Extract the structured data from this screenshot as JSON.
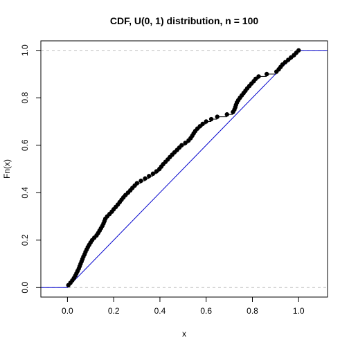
{
  "chart_data": {
    "type": "scatter",
    "title": "CDF, U(0, 1) distribution, n = 100",
    "xlabel": "x",
    "ylabel": "Fn(x)",
    "xlim": [
      -0.115,
      1.125
    ],
    "ylim": [
      -0.04,
      1.04
    ],
    "x_ticks": [
      0.0,
      0.2,
      0.4,
      0.6,
      0.8,
      1.0
    ],
    "x_tick_labels": [
      "0.0",
      "0.2",
      "0.4",
      "0.6",
      "0.8",
      "1.0"
    ],
    "y_ticks": [
      0.0,
      0.2,
      0.4,
      0.6,
      0.8,
      1.0
    ],
    "y_tick_labels": [
      "0.0",
      "0.2",
      "0.4",
      "0.6",
      "0.8",
      "1.0"
    ],
    "reference_hlines": [
      0,
      1
    ],
    "theoretical_cdf": {
      "x": [
        -0.115,
        0,
        1,
        1.125
      ],
      "y": [
        0,
        0,
        1,
        1
      ]
    },
    "ecdf_x": [
      0.004,
      0.013,
      0.021,
      0.028,
      0.034,
      0.039,
      0.044,
      0.049,
      0.053,
      0.057,
      0.061,
      0.065,
      0.069,
      0.074,
      0.078,
      0.083,
      0.088,
      0.094,
      0.1,
      0.107,
      0.116,
      0.126,
      0.133,
      0.139,
      0.145,
      0.151,
      0.156,
      0.16,
      0.164,
      0.172,
      0.182,
      0.192,
      0.2,
      0.209,
      0.218,
      0.226,
      0.234,
      0.242,
      0.251,
      0.262,
      0.272,
      0.281,
      0.291,
      0.301,
      0.318,
      0.336,
      0.353,
      0.37,
      0.385,
      0.398,
      0.406,
      0.414,
      0.424,
      0.434,
      0.443,
      0.453,
      0.463,
      0.474,
      0.484,
      0.494,
      0.51,
      0.524,
      0.533,
      0.54,
      0.546,
      0.553,
      0.562,
      0.573,
      0.585,
      0.6,
      0.622,
      0.648,
      0.69,
      0.716,
      0.722,
      0.726,
      0.729,
      0.733,
      0.739,
      0.746,
      0.754,
      0.762,
      0.77,
      0.778,
      0.787,
      0.796,
      0.806,
      0.814,
      0.827,
      0.862,
      0.904,
      0.914,
      0.922,
      0.93,
      0.942,
      0.955,
      0.967,
      0.98,
      0.99,
      1.0
    ],
    "ecdf_y": [
      0.01,
      0.02,
      0.03,
      0.04,
      0.05,
      0.06,
      0.07,
      0.08,
      0.09,
      0.1,
      0.11,
      0.12,
      0.13,
      0.14,
      0.15,
      0.16,
      0.17,
      0.18,
      0.19,
      0.2,
      0.21,
      0.22,
      0.23,
      0.24,
      0.25,
      0.26,
      0.27,
      0.28,
      0.29,
      0.3,
      0.31,
      0.32,
      0.33,
      0.34,
      0.35,
      0.36,
      0.37,
      0.38,
      0.39,
      0.4,
      0.41,
      0.42,
      0.43,
      0.44,
      0.45,
      0.46,
      0.47,
      0.48,
      0.49,
      0.5,
      0.51,
      0.52,
      0.53,
      0.54,
      0.55,
      0.56,
      0.57,
      0.58,
      0.59,
      0.6,
      0.61,
      0.62,
      0.63,
      0.64,
      0.65,
      0.66,
      0.67,
      0.68,
      0.69,
      0.7,
      0.71,
      0.72,
      0.73,
      0.74,
      0.75,
      0.76,
      0.77,
      0.78,
      0.79,
      0.8,
      0.81,
      0.82,
      0.83,
      0.84,
      0.85,
      0.86,
      0.87,
      0.88,
      0.89,
      0.9,
      0.91,
      0.92,
      0.93,
      0.94,
      0.95,
      0.96,
      0.97,
      0.98,
      0.99,
      1.0
    ],
    "ecdf_color": "#000000",
    "theoretical_color": "#0000CD",
    "reference_line_color": "#BEBEBE"
  }
}
